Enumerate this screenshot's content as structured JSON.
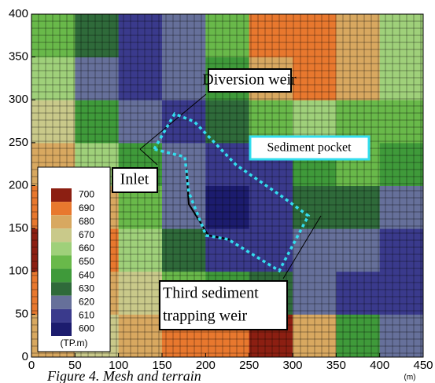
{
  "chart_data": {
    "type": "heatmap",
    "xlim": [
      0,
      450
    ],
    "ylim": [
      0,
      400
    ],
    "xticks": [
      0,
      50,
      100,
      150,
      200,
      250,
      300,
      350,
      400,
      450
    ],
    "yticks": [
      0,
      50,
      100,
      150,
      200,
      250,
      300,
      350,
      400
    ],
    "x_unit": "(m)",
    "x_bins": [
      0,
      50,
      100,
      150,
      200,
      250,
      300,
      350,
      400,
      450
    ],
    "y_bins": [
      0,
      50,
      100,
      150,
      200,
      250,
      300,
      350,
      400
    ],
    "z": [
      [
        680,
        670,
        680,
        690,
        690,
        700,
        680,
        640,
        620
      ],
      [
        690,
        680,
        670,
        650,
        640,
        630,
        620,
        615,
        610
      ],
      [
        700,
        690,
        660,
        630,
        610,
        610,
        620,
        620,
        610
      ],
      [
        690,
        680,
        650,
        620,
        605,
        610,
        630,
        630,
        620
      ],
      [
        680,
        660,
        640,
        620,
        610,
        615,
        640,
        650,
        640
      ],
      [
        670,
        640,
        620,
        615,
        630,
        650,
        660,
        650,
        650
      ],
      [
        660,
        620,
        610,
        620,
        640,
        680,
        690,
        680,
        660
      ],
      [
        650,
        630,
        615,
        625,
        650,
        690,
        690,
        680,
        660
      ]
    ],
    "legend": {
      "levels": [
        600,
        610,
        620,
        630,
        640,
        650,
        660,
        670,
        680,
        690,
        700
      ],
      "colors": [
        "#1c1c6e",
        "#3a3a8c",
        "#66709a",
        "#2f6a3a",
        "#3f9a3a",
        "#69b94a",
        "#9fd07a",
        "#c9c98a",
        "#d8a860",
        "#e8782e",
        "#8c1f12"
      ],
      "unit": "(TP.m)"
    },
    "annotations": [
      "Diversion weir",
      "Sediment pocket",
      "Inlet",
      [
        "Third sediment",
        "trapping weir"
      ]
    ],
    "caption": "Figure 4. Mesh and terrain"
  }
}
